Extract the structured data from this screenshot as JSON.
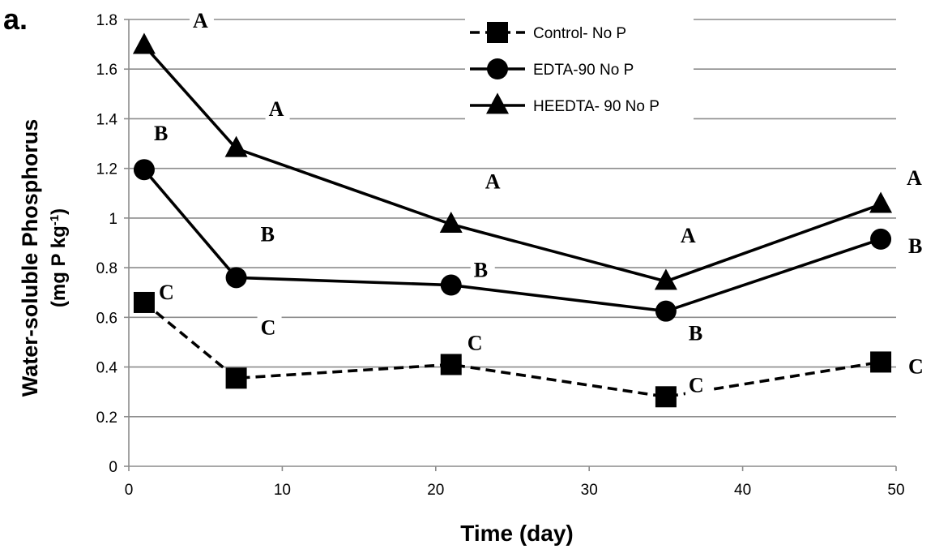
{
  "panel_label": "a.",
  "chart_data": {
    "type": "line",
    "xlabel": "Time (day)",
    "ylabel_line1": "Water-soluble Phosphorus",
    "ylabel_line2_prefix": "(mg P kg",
    "ylabel_line2_sup": "-1",
    "ylabel_line2_suffix": ")",
    "xlim": [
      0,
      50
    ],
    "ylim": [
      0,
      1.8
    ],
    "x_ticks": [
      "0",
      "10",
      "20",
      "30",
      "40",
      "50"
    ],
    "y_ticks": [
      "0",
      "0.2",
      "0.4",
      "0.6",
      "0.8",
      "1",
      "1.2",
      "1.4",
      "1.6",
      "1.8"
    ],
    "grid": "horizontal",
    "legend_position": "top-center",
    "x": [
      1,
      7,
      21,
      35,
      49
    ],
    "series": [
      {
        "name": "Control- No P",
        "marker": "square",
        "line_style": "dashed",
        "values": [
          0.66,
          0.355,
          0.41,
          0.28,
          0.42
        ],
        "letters": [
          "C",
          "C",
          "C",
          "C",
          "C"
        ]
      },
      {
        "name": "EDTA-90 No P",
        "marker": "circle",
        "line_style": "solid",
        "values": [
          1.195,
          0.76,
          0.73,
          0.625,
          0.915
        ],
        "letters": [
          "B",
          "B",
          "B",
          "B",
          "B"
        ]
      },
      {
        "name": "HEEDTA- 90 No P",
        "marker": "triangle",
        "line_style": "solid",
        "values": [
          1.695,
          1.28,
          0.975,
          0.745,
          1.055
        ],
        "letters": [
          "A",
          "A",
          "A",
          "A",
          "A"
        ]
      }
    ]
  }
}
